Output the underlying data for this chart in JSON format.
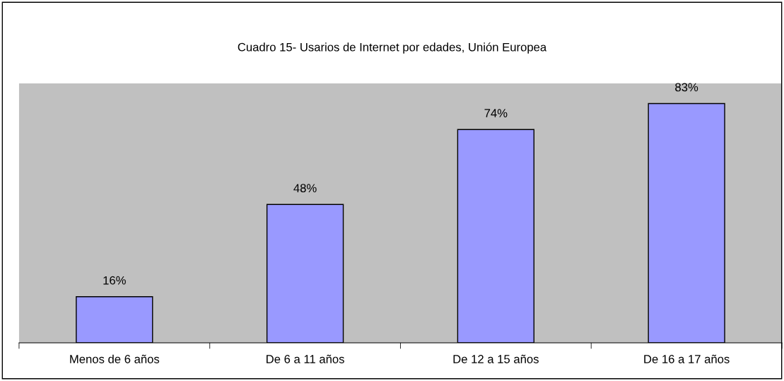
{
  "chart_data": {
    "type": "bar",
    "title": "Cuadro 15- Usarios de Internet por edades, Unión Europea",
    "categories": [
      "Menos de 6 años",
      "De 6 a 11 años",
      "De 12 a 15 años",
      "De 16 a 17 años"
    ],
    "values": [
      16,
      48,
      74,
      83
    ],
    "value_labels": [
      "16%",
      "48%",
      "74%",
      "83%"
    ],
    "color": "#9999ff",
    "ylim": [
      0,
      90
    ],
    "tick_labels": "x",
    "grid": false,
    "legend": false
  }
}
